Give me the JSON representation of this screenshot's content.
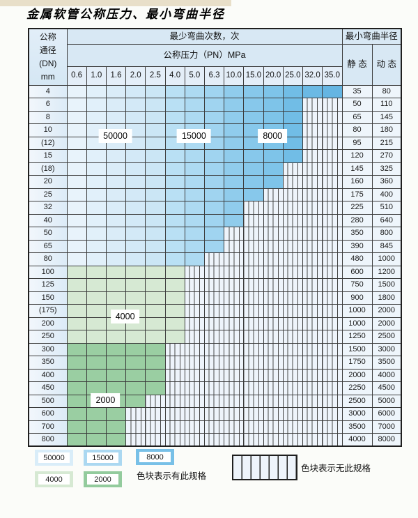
{
  "page": {
    "title": "金属软管公称压力、最小弯曲半径"
  },
  "table": {
    "header": {
      "dn_label": "公称\n通径\n(DN)\nmm",
      "bend_count_label": "最少弯曲次数，次",
      "pressure_label": "公称压力（PN）MPa",
      "radius_label": "最小弯曲半径",
      "static_label": "静 态",
      "dynamic_label": "动 态",
      "pressures": [
        "0.6",
        "1.0",
        "1.6",
        "2.0",
        "2.5",
        "4.0",
        "5.0",
        "6.3",
        "10.0",
        "15.0",
        "20.0",
        "25.0",
        "32.0",
        "35.0"
      ]
    },
    "zones": {
      "blue": [
        {
          "value": "50000",
          "pressures": [
            "0.6",
            "1.0",
            "1.6",
            "2.0",
            "2.5"
          ],
          "colors": [
            "#e8f3fb",
            "#e1f0fa",
            "#daecf8",
            "#d3e9f7",
            "#cbe6f5"
          ]
        },
        {
          "value": "15000",
          "pressures": [
            "4.0",
            "5.0",
            "6.3"
          ],
          "colors": [
            "#b9e0f4",
            "#addaf2",
            "#a0d4f0"
          ]
        },
        {
          "value": "8000",
          "pressures": [
            "10.0",
            "15.0",
            "20.0",
            "25.0",
            "32.0",
            "35.0"
          ],
          "colors": [
            "#90ccec",
            "#87c8eb",
            "#7ec4e9",
            "#71bde6",
            "#6bb9e4",
            "#65b5e2"
          ]
        }
      ],
      "green": [
        {
          "value": "4000",
          "color": "#d6e9d3"
        },
        {
          "value": "2000",
          "color": "#9acea2"
        }
      ]
    },
    "rows": [
      {
        "dn": "4",
        "static": "35",
        "dynamic": "80",
        "spec_through": "35.0"
      },
      {
        "dn": "6",
        "static": "50",
        "dynamic": "110",
        "spec_through": "25.0"
      },
      {
        "dn": "8",
        "static": "65",
        "dynamic": "145",
        "spec_through": "25.0"
      },
      {
        "dn": "10",
        "static": "80",
        "dynamic": "180",
        "spec_through": "25.0"
      },
      {
        "dn": "(12)",
        "static": "95",
        "dynamic": "215",
        "spec_through": "25.0"
      },
      {
        "dn": "15",
        "static": "120",
        "dynamic": "270",
        "spec_through": "25.0"
      },
      {
        "dn": "(18)",
        "static": "145",
        "dynamic": "325",
        "spec_through": "20.0"
      },
      {
        "dn": "20",
        "static": "160",
        "dynamic": "360",
        "spec_through": "20.0"
      },
      {
        "dn": "25",
        "static": "175",
        "dynamic": "400",
        "spec_through": "15.0"
      },
      {
        "dn": "32",
        "static": "225",
        "dynamic": "510",
        "spec_through": "10.0"
      },
      {
        "dn": "40",
        "static": "280",
        "dynamic": "640",
        "spec_through": "10.0"
      },
      {
        "dn": "50",
        "static": "350",
        "dynamic": "800",
        "spec_through": "6.3"
      },
      {
        "dn": "65",
        "static": "390",
        "dynamic": "845",
        "spec_through": "6.3"
      },
      {
        "dn": "80",
        "static": "480",
        "dynamic": "1000",
        "spec_through": "5.0"
      },
      {
        "dn": "100",
        "static": "600",
        "dynamic": "1200",
        "spec_through": "4.0",
        "zone": "4000"
      },
      {
        "dn": "125",
        "static": "750",
        "dynamic": "1500",
        "spec_through": "4.0",
        "zone": "4000"
      },
      {
        "dn": "150",
        "static": "900",
        "dynamic": "1800",
        "spec_through": "4.0",
        "zone": "4000"
      },
      {
        "dn": "(175)",
        "static": "1000",
        "dynamic": "2000",
        "spec_through": "4.0",
        "zone": "4000"
      },
      {
        "dn": "200",
        "static": "1000",
        "dynamic": "2000",
        "spec_through": "4.0",
        "zone": "4000"
      },
      {
        "dn": "250",
        "static": "1250",
        "dynamic": "2500",
        "spec_through": "4.0",
        "zone": "4000"
      },
      {
        "dn": "300",
        "static": "1500",
        "dynamic": "3000",
        "spec_through": "2.5",
        "zone": "2000"
      },
      {
        "dn": "350",
        "static": "1750",
        "dynamic": "3500",
        "spec_through": "2.5",
        "zone": "2000"
      },
      {
        "dn": "400",
        "static": "2000",
        "dynamic": "4000",
        "spec_through": "2.5",
        "zone": "2000"
      },
      {
        "dn": "450",
        "static": "2250",
        "dynamic": "4500",
        "spec_through": "2.5",
        "zone": "2000"
      },
      {
        "dn": "500",
        "static": "2500",
        "dynamic": "5000",
        "spec_through": "2.0",
        "zone": "2000"
      },
      {
        "dn": "600",
        "static": "3000",
        "dynamic": "6000",
        "spec_through": "1.6",
        "zone": "2000"
      },
      {
        "dn": "700",
        "static": "3500",
        "dynamic": "7000",
        "spec_through": "1.6",
        "zone": "2000"
      },
      {
        "dn": "800",
        "static": "4000",
        "dynamic": "8000",
        "spec_through": "1.6",
        "zone": "2000"
      }
    ],
    "overlays": [
      {
        "text": "50000",
        "rows": [
          "10",
          "(12)"
        ],
        "cols": [
          "1.0",
          "2.0"
        ]
      },
      {
        "text": "15000",
        "rows": [
          "10",
          "(12)"
        ],
        "cols": [
          "4.0",
          "6.3"
        ]
      },
      {
        "text": "8000",
        "rows": [
          "10",
          "(12)"
        ],
        "cols": [
          "15.0",
          "25.0"
        ]
      },
      {
        "text": "4000",
        "rows": [
          "(175)",
          "200"
        ],
        "cols": [
          "1.6",
          "2.0"
        ]
      },
      {
        "text": "2000",
        "rows": [
          "500",
          "500"
        ],
        "cols": [
          "1.0",
          "1.6"
        ]
      }
    ]
  },
  "legend": {
    "items": [
      {
        "value": "50000",
        "color": "#d9edf9"
      },
      {
        "value": "15000",
        "color": "#abd8f1"
      },
      {
        "value": "8000",
        "color": "#78c0e7"
      },
      {
        "value": "4000",
        "color": "#d6e9d3"
      },
      {
        "value": "2000",
        "color": "#93cb9d"
      }
    ],
    "has_spec_note": "色块表示有此规格",
    "no_spec_note": "色块表示无此规格"
  }
}
